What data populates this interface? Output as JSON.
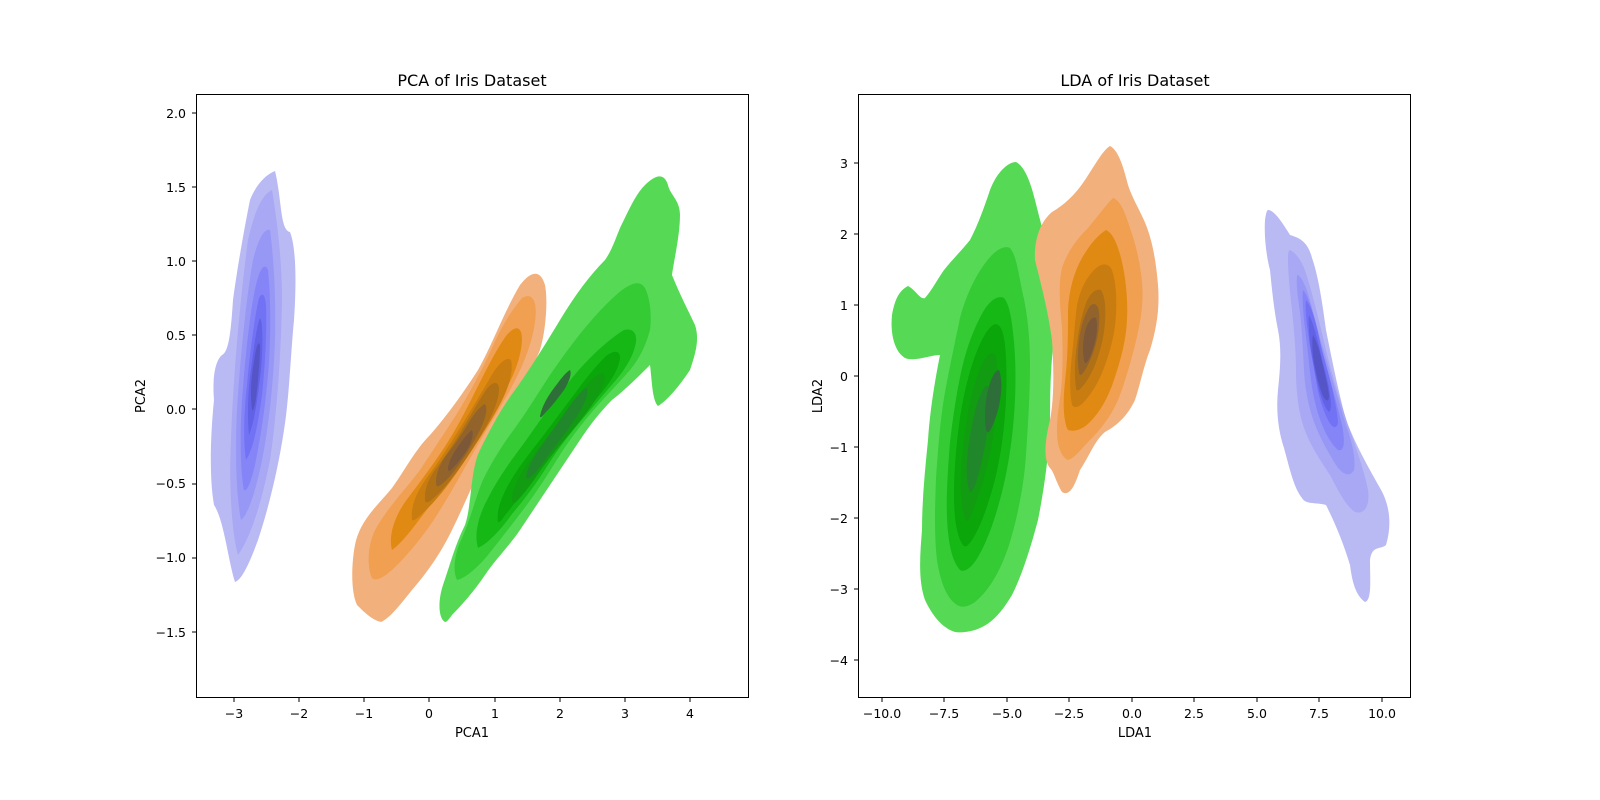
{
  "chart_data": [
    {
      "type": "kde-contour",
      "title": "PCA of Iris Dataset",
      "xlabel": "PCA1",
      "ylabel": "PCA2",
      "xlim": [
        -3.55,
        4.9
      ],
      "ylim": [
        -1.95,
        2.12
      ],
      "xticks": [
        -3,
        -2,
        -1,
        0,
        1,
        2,
        3,
        4
      ],
      "xtick_labels": [
        "−3",
        "−2",
        "−1",
        "0",
        "1",
        "2",
        "3",
        "4"
      ],
      "yticks": [
        -1.5,
        -1.0,
        -0.5,
        0.0,
        0.5,
        1.0,
        1.5,
        2.0
      ],
      "ytick_labels": [
        "−1.5",
        "−1.0",
        "−0.5",
        "0.0",
        "0.5",
        "1.0",
        "1.5",
        "2.0"
      ],
      "grid": false,
      "series": [
        {
          "color": "#5c5cff",
          "center": [
            -2.68,
            0.2
          ],
          "extent_x": [
            -3.35,
            -2.05
          ],
          "extent_y": [
            -1.18,
            1.6
          ]
        },
        {
          "color": "#f28c28",
          "center": [
            0.55,
            -0.38
          ],
          "extent_x": [
            -1.15,
            1.9
          ],
          "extent_y": [
            -1.45,
            0.94
          ]
        },
        {
          "color": "#22bb22",
          "center": [
            2.1,
            -0.05
          ],
          "extent_x": [
            0.15,
            4.15
          ],
          "extent_y": [
            -1.42,
            1.6
          ]
        }
      ]
    },
    {
      "type": "kde-contour",
      "title": "LDA of Iris Dataset",
      "xlabel": "LDA1",
      "ylabel": "LDA2",
      "xlim": [
        -10.9,
        11.1
      ],
      "ylim": [
        -4.5,
        3.95
      ],
      "xticks": [
        -10,
        -7.5,
        -5,
        -2.5,
        0,
        2.5,
        5,
        7.5,
        10
      ],
      "xtick_labels": [
        "−10.0",
        "−7.5",
        "−5.0",
        "−2.5",
        "0.0",
        "2.5",
        "5.0",
        "7.5",
        "10.0"
      ],
      "yticks": [
        -4,
        -3,
        -2,
        -1,
        0,
        1,
        2,
        3
      ],
      "ytick_labels": [
        "−4",
        "−3",
        "−2",
        "−1",
        "0",
        "1",
        "2",
        "3"
      ],
      "grid": false,
      "series": [
        {
          "color": "#5c5cff",
          "center": [
            7.6,
            0.4
          ],
          "extent_x": [
            5.3,
            10.0
          ],
          "extent_y": [
            -3.2,
            2.35
          ]
        },
        {
          "color": "#f28c28",
          "center": [
            -1.8,
            0.5
          ],
          "extent_x": [
            -3.9,
            1.0
          ],
          "extent_y": [
            -1.65,
            3.3
          ]
        },
        {
          "color": "#22bb22",
          "center": [
            -5.8,
            -1.0
          ],
          "extent_x": [
            -9.7,
            -3.0
          ],
          "extent_y": [
            -3.6,
            3.0
          ]
        }
      ]
    }
  ]
}
